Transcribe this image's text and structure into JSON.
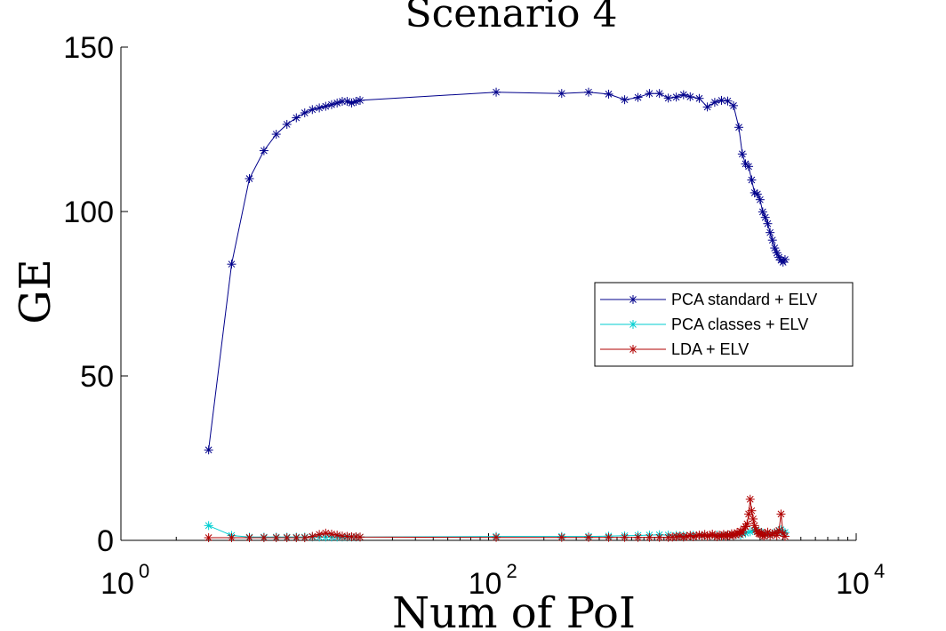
{
  "chart_data": {
    "type": "line",
    "title": "Scenario 4",
    "xlabel": "Num of PoI",
    "ylabel": "GE",
    "xscale": "log",
    "xlim": [
      1,
      10000
    ],
    "ylim": [
      0,
      150
    ],
    "xticks": [
      {
        "value": 1,
        "base": "10",
        "exp": "0"
      },
      {
        "value": 100,
        "base": "10",
        "exp": "2"
      },
      {
        "value": 10000,
        "base": "10",
        "exp": "4"
      }
    ],
    "yticks": [
      0,
      50,
      100,
      150
    ],
    "grid": false,
    "legend_position": "center-right",
    "colors": {
      "pca_standard": "#00008b",
      "pca_classes": "#00ced1",
      "lda": "#b00000"
    },
    "series": [
      {
        "name": "PCA standard + ELV",
        "color": "#00008b",
        "x": [
          3,
          4,
          5,
          6,
          7,
          8,
          9,
          10,
          11,
          12,
          13,
          14,
          15,
          16,
          17,
          18,
          19,
          20,
          110,
          250,
          350,
          450,
          550,
          650,
          750,
          850,
          950,
          1050,
          1150,
          1250,
          1400,
          1550,
          1700,
          1850,
          2000,
          2150,
          2300,
          2400,
          2500,
          2600,
          2700,
          2800,
          2900,
          3000,
          3100,
          3200,
          3300,
          3400,
          3500,
          3600,
          3700,
          3800,
          3900,
          4000,
          4100
        ],
        "y": [
          27.5,
          84,
          110,
          118.5,
          123.5,
          126.5,
          128.5,
          130,
          131,
          131.5,
          132,
          132.5,
          133,
          133.5,
          133.5,
          133,
          133.5,
          133.8,
          136.3,
          135.9,
          136.3,
          135.7,
          134,
          134.7,
          135.9,
          135.9,
          134.5,
          134.8,
          135.5,
          134.9,
          134.4,
          131.8,
          133.2,
          133.8,
          133.6,
          132.2,
          125.6,
          117.5,
          114.5,
          113.7,
          109.6,
          105.7,
          105.3,
          103.6,
          99.9,
          98.2,
          96.3,
          93.6,
          91.3,
          88.9,
          87.4,
          86.1,
          85.2,
          84.6,
          85.4
        ]
      },
      {
        "name": "PCA classes + ELV",
        "color": "#00ced1",
        "x": [
          3,
          4,
          5,
          6,
          7,
          8,
          9,
          10,
          11,
          12,
          13,
          14,
          15,
          16,
          17,
          18,
          19,
          20,
          110,
          250,
          350,
          450,
          550,
          650,
          750,
          850,
          950,
          1050,
          1150,
          1300,
          1450,
          1600,
          1750,
          1900,
          2050,
          2200,
          2350,
          2500,
          2650,
          2800,
          2950,
          3100,
          3300,
          3500,
          3700,
          3900,
          4100
        ],
        "y": [
          4.5,
          1.5,
          1,
          1,
          1,
          1,
          1,
          1,
          1,
          1,
          1,
          1,
          1,
          1,
          1,
          1,
          1,
          1,
          1.2,
          1.2,
          1.2,
          1.3,
          1.4,
          1.5,
          1.6,
          1.7,
          1.6,
          1.5,
          1.5,
          1.6,
          1.5,
          1.5,
          1.6,
          1.5,
          1.6,
          1.7,
          1.6,
          2.2,
          2.6,
          3.0,
          2.8,
          2.2,
          1.8,
          2.0,
          2.6,
          3.2,
          2.4
        ]
      },
      {
        "name": "LDA + ELV",
        "color": "#b00000",
        "x": [
          3,
          4,
          5,
          6,
          7,
          8,
          9,
          10,
          11,
          12,
          13,
          14,
          15,
          16,
          17,
          18,
          19,
          20,
          110,
          250,
          350,
          450,
          550,
          650,
          750,
          850,
          950,
          1000,
          1050,
          1100,
          1150,
          1200,
          1250,
          1300,
          1350,
          1400,
          1450,
          1500,
          1550,
          1600,
          1650,
          1700,
          1750,
          1800,
          1850,
          1900,
          1950,
          2000,
          2050,
          2100,
          2150,
          2200,
          2250,
          2300,
          2350,
          2400,
          2450,
          2500,
          2550,
          2600,
          2650,
          2700,
          2750,
          2800,
          2850,
          2900,
          2950,
          3000,
          3050,
          3100,
          3150,
          3200,
          3300,
          3400,
          3500,
          3600,
          3700,
          3800,
          3900,
          4000,
          4100
        ],
        "y": [
          0.8,
          0.8,
          0.8,
          0.8,
          0.8,
          0.8,
          0.8,
          0.8,
          1.2,
          1.8,
          2.2,
          1.9,
          1.6,
          1.3,
          1.2,
          1.1,
          1.1,
          1.0,
          0.9,
          0.9,
          0.9,
          0.9,
          0.9,
          0.9,
          0.9,
          0.9,
          0.9,
          1.0,
          1.1,
          1.3,
          1.0,
          1.2,
          1.5,
          1.1,
          1.4,
          1.6,
          1.3,
          1.8,
          1.2,
          1.5,
          1.9,
          1.4,
          1.1,
          1.6,
          1.3,
          1.8,
          1.2,
          1.7,
          1.4,
          2.0,
          1.5,
          1.8,
          2.4,
          1.9,
          2.8,
          2.2,
          3.5,
          4.2,
          5.0,
          8.0,
          12.5,
          9.0,
          6.5,
          4.5,
          3.2,
          2.6,
          2.1,
          1.9,
          2.4,
          1.6,
          1.3,
          1.8,
          2.5,
          1.4,
          1.9,
          2.3,
          1.5,
          3.0,
          8.0,
          2.2,
          1.2
        ]
      }
    ]
  }
}
